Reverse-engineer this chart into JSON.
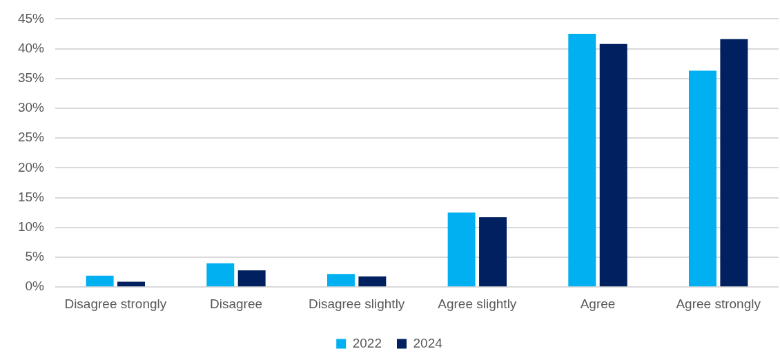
{
  "chart_data": {
    "type": "bar",
    "categories": [
      "Disagree strongly",
      "Disagree",
      "Disagree slightly",
      "Agree slightly",
      "Agree",
      "Agree strongly"
    ],
    "series": [
      {
        "name": "2022",
        "color": "#00b0f0",
        "values": [
          1.9,
          4.0,
          2.2,
          12.5,
          42.5,
          36.3
        ]
      },
      {
        "name": "2024",
        "color": "#002060",
        "values": [
          0.9,
          2.8,
          1.8,
          11.7,
          40.8,
          41.6
        ]
      }
    ],
    "ylim": [
      0,
      45
    ],
    "yticks": [
      {
        "value": 0,
        "label": "0%"
      },
      {
        "value": 5,
        "label": "5%"
      },
      {
        "value": 10,
        "label": "10%"
      },
      {
        "value": 15,
        "label": "15%"
      },
      {
        "value": 20,
        "label": "20%"
      },
      {
        "value": 25,
        "label": "25%"
      },
      {
        "value": 30,
        "label": "30%"
      },
      {
        "value": 35,
        "label": "35%"
      },
      {
        "value": 40,
        "label": "40%"
      },
      {
        "value": 45,
        "label": "45%"
      }
    ],
    "grid": "y",
    "legend": "bottom"
  }
}
